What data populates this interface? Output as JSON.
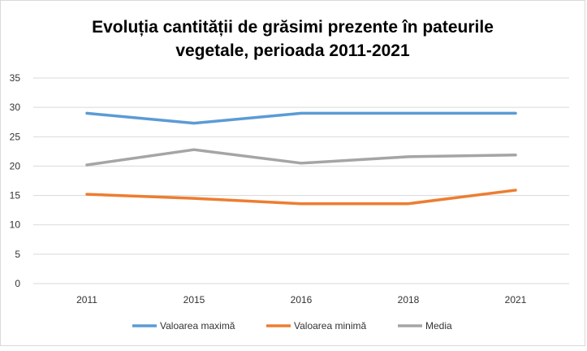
{
  "chart_data": {
    "type": "line",
    "title_lines": [
      "Evoluția cantității de grăsimi prezente în pateurile",
      "vegetale, perioada 2011-2021"
    ],
    "categories": [
      "2011",
      "2015",
      "2016",
      "2018",
      "2021"
    ],
    "ylim": [
      0,
      35
    ],
    "yticks": [
      0,
      5,
      10,
      15,
      20,
      25,
      30,
      35
    ],
    "grid": true,
    "legend_position": "bottom",
    "series": [
      {
        "name": "Valoarea maximă",
        "color": "#5b9bd5",
        "values": [
          29,
          27.3,
          29,
          29,
          29
        ]
      },
      {
        "name": "Valoarea minimă",
        "color": "#ed7d31",
        "values": [
          15.2,
          14.5,
          13.6,
          13.6,
          15.9
        ]
      },
      {
        "name": "Media",
        "color": "#a5a5a5",
        "values": [
          20.2,
          22.8,
          20.5,
          21.6,
          21.9
        ]
      }
    ]
  }
}
